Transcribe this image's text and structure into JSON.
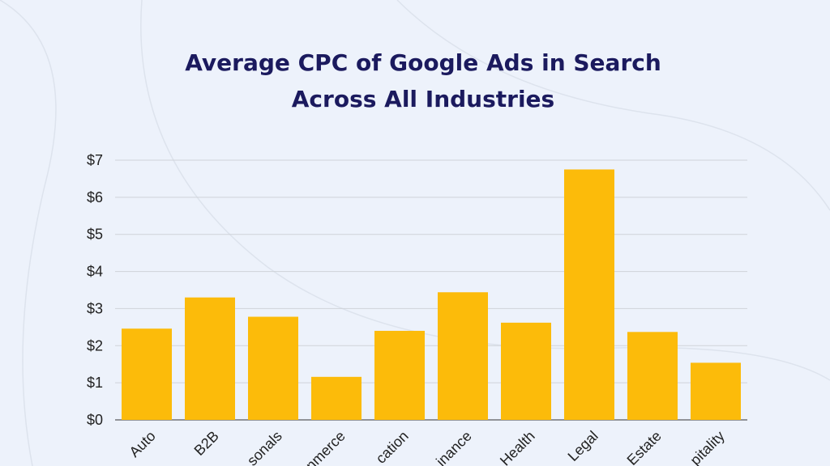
{
  "title_lines": [
    "Average CPC of Google Ads in Search",
    "Across All Industries"
  ],
  "colors": {
    "bar": "#fcbb0a",
    "grid": "#cfd3d9",
    "title": "#1b1a5e",
    "background": "#edf2fb"
  },
  "chart_data": {
    "type": "bar",
    "title": "Average CPC of Google Ads in Search Across All Industries",
    "xlabel": "",
    "ylabel": "",
    "categories": [
      "Auto",
      "B2B",
      "Personals",
      "E-Commerce",
      "Education",
      "Finance",
      "Health",
      "Legal",
      "Real Estate",
      "Hospitality"
    ],
    "visible_category_labels": [
      "Auto",
      "B2B",
      "sonals",
      "nmerce",
      "cation",
      "inance",
      "Health",
      "Legal",
      "Estate",
      "pitality"
    ],
    "values": [
      2.46,
      3.3,
      2.78,
      1.16,
      2.4,
      3.44,
      2.62,
      6.75,
      2.37,
      1.54
    ],
    "ylim": [
      0,
      7
    ],
    "yticks": [
      "$0",
      "$1",
      "$2",
      "$3",
      "$4",
      "$5",
      "$6",
      "$7"
    ],
    "grid": true,
    "legend": "none"
  }
}
